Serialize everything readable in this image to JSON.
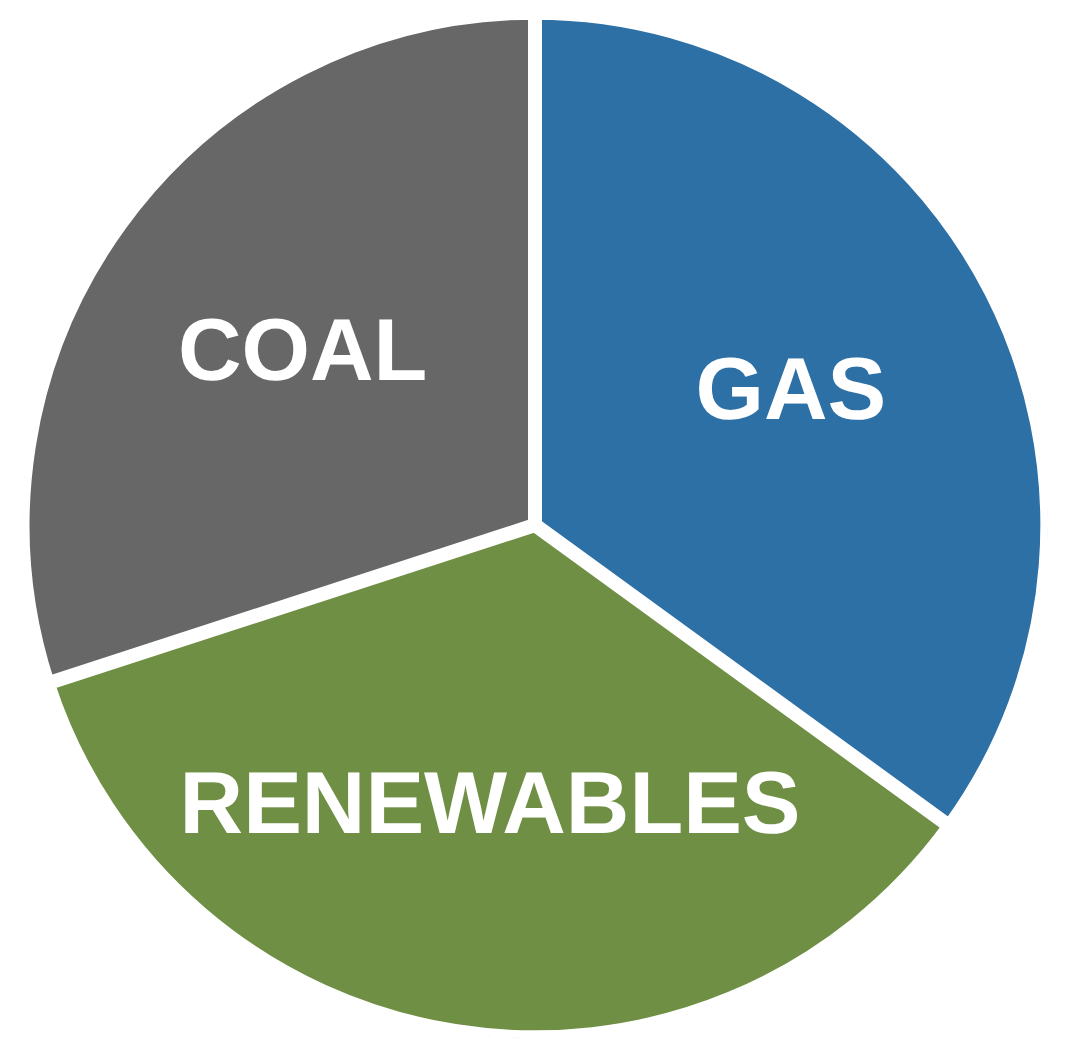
{
  "chart_data": {
    "type": "pie",
    "categories": [
      "GAS",
      "RENEWABLES",
      "COAL"
    ],
    "values": [
      35,
      35,
      30
    ],
    "colors": [
      "#2d70a6",
      "#6f8f44",
      "#676767"
    ],
    "legend": false
  }
}
